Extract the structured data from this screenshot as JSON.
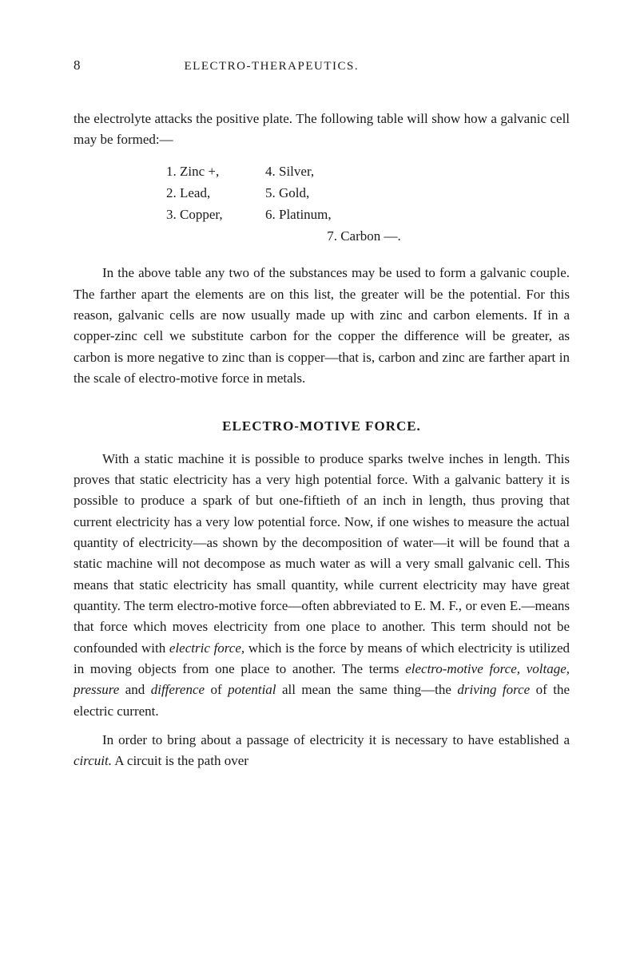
{
  "header": {
    "page_number": "8",
    "running_title": "ELECTRO-THERAPEUTICS."
  },
  "intro_paragraph": {
    "line1": "the electrolyte attacks the positive plate. The following table",
    "line2": "will show how a galvanic cell may be formed:—"
  },
  "list": {
    "row1_left": "1. Zinc +,",
    "row1_right": "4. Silver,",
    "row2_left": "2. Lead,",
    "row2_right": "5. Gold,",
    "row3_left": "3. Copper,",
    "row3_right": "6. Platinum,",
    "row4_center": "7. Carbon —."
  },
  "paragraph2": "In the above table any two of the substances may be used to form a galvanic couple. The farther apart the elements are on this list, the greater will be the potential. For this reason, galvanic cells are now usually made up with zinc and carbon elements. If in a copper-zinc cell we substitute carbon for the copper the difference will be greater, as carbon is more negative to zinc than is copper—that is, carbon and zinc are farther apart in the scale of electro-motive force in metals.",
  "section_title": "ELECTRO-MOTIVE FORCE.",
  "paragraph3_part1": "With a static machine it is possible to produce sparks twelve inches in length. This proves that static electricity has a very high potential force. With a galvanic battery it is possible to produce a spark of but one-fiftieth of an inch in length, thus proving that current electricity has a very low potential force. Now, if one wishes to measure the actual quantity of electricity—as shown by the decomposition of water—it will be found that a static machine will not decompose as much water as will a very small galvanic cell. This means that static electricity has small quantity, while current electricity may have great quantity. The term electro-motive force—often abbreviated to E. M. F., or even E.—means that force which moves electricity from one place to another. This term should not be confounded with ",
  "italic1": "electric force,",
  "paragraph3_part2": " which is the force by means of which electricity is utilized in moving objects from one place to another. The terms ",
  "italic2": "electro-motive force, voltage, pressure",
  "paragraph3_part3": " and ",
  "italic3": "difference",
  "paragraph3_part4": " of ",
  "italic4": "potential",
  "paragraph3_part5": " all mean the same thing—the ",
  "italic5": "driving force",
  "paragraph3_part6": " of the electric current.",
  "paragraph4_part1": "In order to bring about a passage of electricity it is necessary to have established a ",
  "italic6": "circuit.",
  "paragraph4_part2": " A circuit is the path over"
}
